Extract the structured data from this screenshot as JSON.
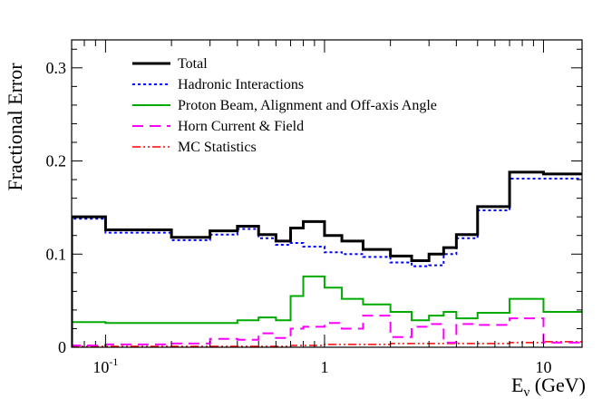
{
  "chart_data": {
    "type": "line",
    "step": true,
    "xscale": "log",
    "xlim": [
      0.07,
      15
    ],
    "ylim": [
      0,
      0.33
    ],
    "ylabel": "Fractional Error",
    "xlabel_base": "E",
    "xlabel_sub": "ν",
    "xlabel_unit": " (GeV)",
    "x_ticks": [
      {
        "value": 0.1,
        "base": "10",
        "exp": "-1"
      },
      {
        "value": 1,
        "base": "1",
        "exp": ""
      },
      {
        "value": 10,
        "base": "10",
        "exp": ""
      }
    ],
    "y_ticks": [
      {
        "value": 0,
        "label": "0"
      },
      {
        "value": 0.1,
        "label": "0.1"
      },
      {
        "value": 0.2,
        "label": "0.2"
      },
      {
        "value": 0.3,
        "label": "0.3"
      }
    ],
    "bin_edges": [
      0.07,
      0.1,
      0.2,
      0.3,
      0.4,
      0.5,
      0.6,
      0.7,
      0.8,
      1.0,
      1.2,
      1.5,
      2.0,
      2.5,
      3.0,
      3.5,
      4.0,
      5.0,
      7.0,
      10.0,
      15.0
    ],
    "legend_position": "top-left",
    "series": [
      {
        "name": "Total",
        "color": "#000000",
        "dash": "solid",
        "width": 3,
        "values": [
          0.14,
          0.126,
          0.118,
          0.125,
          0.13,
          0.121,
          0.114,
          0.128,
          0.135,
          0.12,
          0.114,
          0.105,
          0.098,
          0.093,
          0.1,
          0.107,
          0.121,
          0.151,
          0.188,
          0.186
        ]
      },
      {
        "name": "Hadronic Interactions",
        "color": "#0000ff",
        "dash": "dotted",
        "width": 2,
        "values": [
          0.138,
          0.123,
          0.115,
          0.121,
          0.127,
          0.117,
          0.11,
          0.112,
          0.108,
          0.102,
          0.1,
          0.097,
          0.091,
          0.087,
          0.088,
          0.1,
          0.117,
          0.147,
          0.181,
          0.181
        ]
      },
      {
        "name": "Proton Beam, Alignment and Off-axis Angle",
        "color": "#00aa00",
        "dash": "solid",
        "width": 2,
        "values": [
          0.027,
          0.026,
          0.026,
          0.026,
          0.029,
          0.032,
          0.029,
          0.055,
          0.076,
          0.064,
          0.052,
          0.046,
          0.038,
          0.029,
          0.034,
          0.038,
          0.031,
          0.037,
          0.052,
          0.038
        ]
      },
      {
        "name": "Horn Current & Field",
        "color": "#ff00ff",
        "dash": "dashed",
        "width": 2,
        "values": [
          0.002,
          0.003,
          0.004,
          0.009,
          0.008,
          0.015,
          0.01,
          0.02,
          0.022,
          0.026,
          0.02,
          0.034,
          0.011,
          0.022,
          0.025,
          0.005,
          0.025,
          0.024,
          0.031,
          0.005
        ]
      },
      {
        "name": "MC Statistics",
        "color": "#ff0000",
        "dash": "dashdot",
        "width": 1.5,
        "values": [
          0.001,
          0.001,
          0.001,
          0.001,
          0.001,
          0.001,
          0.001,
          0.002,
          0.002,
          0.003,
          0.003,
          0.003,
          0.004,
          0.004,
          0.004,
          0.004,
          0.004,
          0.004,
          0.005,
          0.006
        ]
      }
    ]
  }
}
